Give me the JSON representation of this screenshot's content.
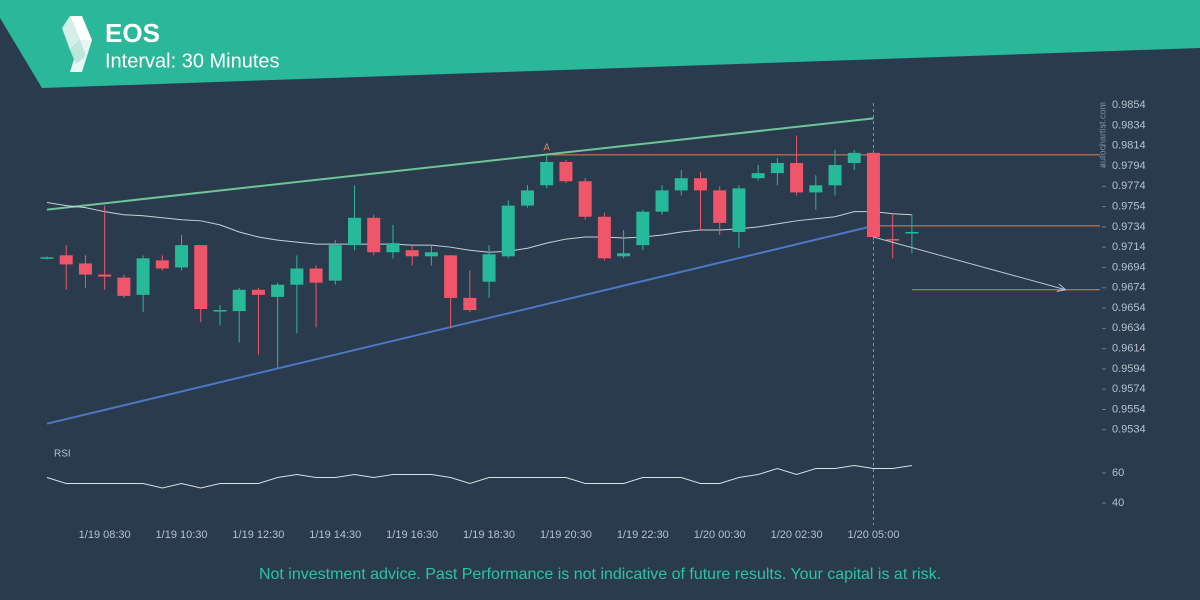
{
  "header": {
    "title": "EOS",
    "subtitle": "Interval: 30 Minutes"
  },
  "watermark": "autochartist.com",
  "disclaimer": "Not investment advice. Past Performance is not indicative of future results. Your capital is at risk.",
  "chart_data": [
    {
      "type": "candlestick",
      "categories": [
        null,
        null,
        null,
        "1/19 08:30",
        null,
        null,
        null,
        "1/19 10:30",
        null,
        null,
        null,
        "1/19 12:30",
        null,
        null,
        null,
        "1/19 14:30",
        null,
        null,
        null,
        "1/19 16:30",
        null,
        null,
        null,
        "1/19 18:30",
        null,
        null,
        null,
        "1/19 20:30",
        null,
        null,
        null,
        "1/19 22:30",
        null,
        null,
        null,
        "1/20 00:30",
        null,
        null,
        null,
        "1/20 02:30",
        null,
        null,
        null,
        "1/20 05:00",
        null,
        null
      ],
      "open": [
        0.9703,
        0.9706,
        0.9698,
        0.9687,
        0.9684,
        0.9667,
        0.9701,
        0.9694,
        0.9716,
        0.9652,
        0.9651,
        0.9672,
        0.9665,
        0.9677,
        0.9693,
        0.9681,
        0.9716,
        0.9743,
        0.9709,
        0.9711,
        0.9705,
        0.9706,
        0.9664,
        0.968,
        0.9705,
        0.9755,
        0.9775,
        0.9798,
        0.9779,
        0.9744,
        0.9705,
        0.9716,
        0.9749,
        0.977,
        0.9782,
        0.977,
        0.9729,
        0.9782,
        0.9787,
        0.9797,
        0.9768,
        0.9775,
        0.9797,
        0.9807,
        0.9722,
        0.9728
      ],
      "high": [
        0.9705,
        0.9716,
        0.9706,
        0.9755,
        0.9687,
        0.9706,
        0.9706,
        0.9726,
        0.9716,
        0.9657,
        0.9674,
        0.9674,
        0.9679,
        0.9706,
        0.9696,
        0.9721,
        0.9775,
        0.9746,
        0.9736,
        0.9716,
        0.9716,
        0.9706,
        0.9691,
        0.9716,
        0.976,
        0.9775,
        0.9805,
        0.98,
        0.9782,
        0.9748,
        0.9731,
        0.9751,
        0.9775,
        0.979,
        0.9788,
        0.9774,
        0.9775,
        0.9795,
        0.9802,
        0.9824,
        0.9785,
        0.981,
        0.981,
        0.981,
        0.9746,
        0.9746
      ],
      "low": [
        0.9702,
        0.9672,
        0.9674,
        0.9672,
        0.9664,
        0.965,
        0.9691,
        0.9691,
        0.964,
        0.9637,
        0.962,
        0.9608,
        0.9595,
        0.9629,
        0.9635,
        0.9677,
        0.9711,
        0.9706,
        0.9703,
        0.9696,
        0.9696,
        0.9634,
        0.965,
        0.9664,
        0.9703,
        0.9753,
        0.9772,
        0.9777,
        0.9741,
        0.9701,
        0.9703,
        0.9711,
        0.9746,
        0.9765,
        0.9731,
        0.9726,
        0.9713,
        0.978,
        0.9775,
        0.9765,
        0.9751,
        0.9765,
        0.979,
        0.9721,
        0.9703,
        0.9708
      ],
      "close": [
        0.9704,
        0.9697,
        0.9687,
        0.9685,
        0.9666,
        0.9703,
        0.9693,
        0.9716,
        0.9653,
        0.9652,
        0.9672,
        0.9667,
        0.9677,
        0.9693,
        0.9679,
        0.9716,
        0.9743,
        0.9709,
        0.9718,
        0.9705,
        0.9709,
        0.9664,
        0.9652,
        0.9707,
        0.9755,
        0.977,
        0.9798,
        0.9779,
        0.9744,
        0.9703,
        0.9708,
        0.9749,
        0.977,
        0.9782,
        0.977,
        0.9738,
        0.9772,
        0.9787,
        0.9797,
        0.9768,
        0.9775,
        0.9795,
        0.9807,
        0.9724,
        0.9721,
        0.9729
      ],
      "up_color": "#26b99a",
      "down_color": "#f0566a",
      "ylim": [
        0.9518,
        0.9866
      ],
      "yticks": [
        0.9854,
        0.9834,
        0.9814,
        0.9794,
        0.9774,
        0.9754,
        0.9734,
        0.9714,
        0.9694,
        0.9674,
        0.9654,
        0.9634,
        0.9614,
        0.9594,
        0.9574,
        0.9554,
        0.9534
      ],
      "moving_average": {
        "color": "#c9d0d8",
        "values": [
          0.9758,
          0.9755,
          0.9753,
          0.9749,
          0.9746,
          0.9745,
          0.9743,
          0.9741,
          0.974,
          0.9736,
          0.9729,
          0.9724,
          0.9721,
          0.9719,
          0.9717,
          0.9717,
          0.9717,
          0.9717,
          0.9717,
          0.9716,
          0.9716,
          0.9714,
          0.9711,
          0.9709,
          0.971,
          0.9713,
          0.9718,
          0.9722,
          0.9724,
          0.9724,
          0.9723,
          0.9724,
          0.9726,
          0.9729,
          0.9731,
          0.9731,
          0.9732,
          0.9734,
          0.9737,
          0.974,
          0.9742,
          0.9744,
          0.9749,
          0.9749,
          0.9747,
          0.9746
        ]
      },
      "trend_lines": [
        {
          "color": "#6fc49a",
          "x": [
            0,
            43
          ],
          "values": [
            0.9751,
            0.9841
          ]
        },
        {
          "color": "#4a78c2",
          "x": [
            0,
            43
          ],
          "values": [
            0.954,
            0.9735
          ]
        }
      ],
      "levels": [
        {
          "value": 0.9805,
          "start": 26,
          "color": "#e0834f",
          "label": "A"
        },
        {
          "value": 0.9735,
          "start": 43,
          "color": "#e0834f"
        },
        {
          "value": 0.9672,
          "start": 45,
          "color": "#e0834f"
        }
      ],
      "forecast": {
        "color": "#b9c2cc",
        "x": [
          43,
          53
        ],
        "values": [
          0.9724,
          0.9672
        ]
      },
      "vline_category": 43
    },
    {
      "type": "line",
      "title": "RSI",
      "color": "#d9dee4",
      "values": [
        57,
        53,
        53,
        53,
        53,
        53,
        50,
        53,
        50,
        53,
        53,
        53,
        57,
        59,
        57,
        57,
        59,
        57,
        59,
        59,
        59,
        57,
        53,
        57,
        57,
        57,
        57,
        57,
        53,
        53,
        53,
        57,
        57,
        57,
        53,
        53,
        57,
        59,
        63,
        59,
        63,
        63,
        65,
        63,
        63,
        65
      ],
      "ylim": [
        35,
        80
      ],
      "yticks": [
        40,
        60
      ]
    }
  ]
}
